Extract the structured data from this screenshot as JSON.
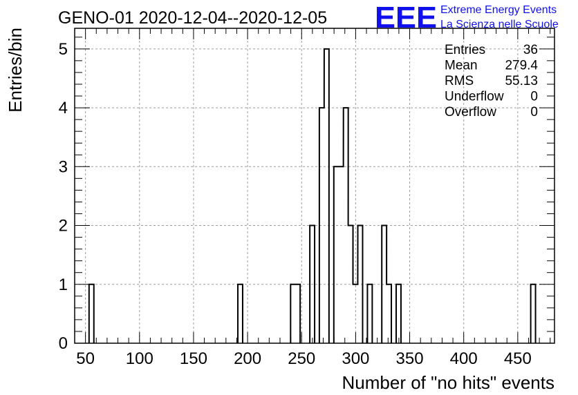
{
  "logo": {
    "letters": "EEE",
    "line1": "Extreme Energy Events",
    "line2": "La Scienza nelle Scuole",
    "color": "#1010ee"
  },
  "stats": [
    {
      "label": "Entries",
      "value": "36"
    },
    {
      "label": "Mean",
      "value": "279.4"
    },
    {
      "label": "RMS",
      "value": "55.13"
    },
    {
      "label": "Underflow",
      "value": "0"
    },
    {
      "label": "Overflow",
      "value": "0"
    }
  ],
  "chart_data": {
    "type": "bar",
    "title": "GENO-01 2020-12-04--2020-12-05",
    "xlabel": "Number of \"no hits\" events",
    "ylabel": "Entries/bin",
    "xlim": [
      40,
      484
    ],
    "ylim": [
      0,
      5.35
    ],
    "bin_width": 4.44,
    "xticks": [
      50,
      100,
      150,
      200,
      250,
      300,
      350,
      400,
      450
    ],
    "yticks": [
      0,
      1,
      2,
      3,
      4,
      5
    ],
    "grid": true,
    "line_color": "#000000",
    "bins": [
      {
        "x": 53.32,
        "count": 1
      },
      {
        "x": 191.0,
        "count": 1
      },
      {
        "x": 239.8,
        "count": 1
      },
      {
        "x": 244.2,
        "count": 1
      },
      {
        "x": 257.6,
        "count": 2
      },
      {
        "x": 266.4,
        "count": 4
      },
      {
        "x": 270.9,
        "count": 5
      },
      {
        "x": 279.8,
        "count": 3
      },
      {
        "x": 284.2,
        "count": 3
      },
      {
        "x": 288.7,
        "count": 4
      },
      {
        "x": 293.1,
        "count": 2
      },
      {
        "x": 297.5,
        "count": 1
      },
      {
        "x": 302.0,
        "count": 2
      },
      {
        "x": 310.9,
        "count": 1
      },
      {
        "x": 324.2,
        "count": 2
      },
      {
        "x": 328.6,
        "count": 1
      },
      {
        "x": 337.5,
        "count": 1
      },
      {
        "x": 462.0,
        "count": 1
      }
    ]
  }
}
